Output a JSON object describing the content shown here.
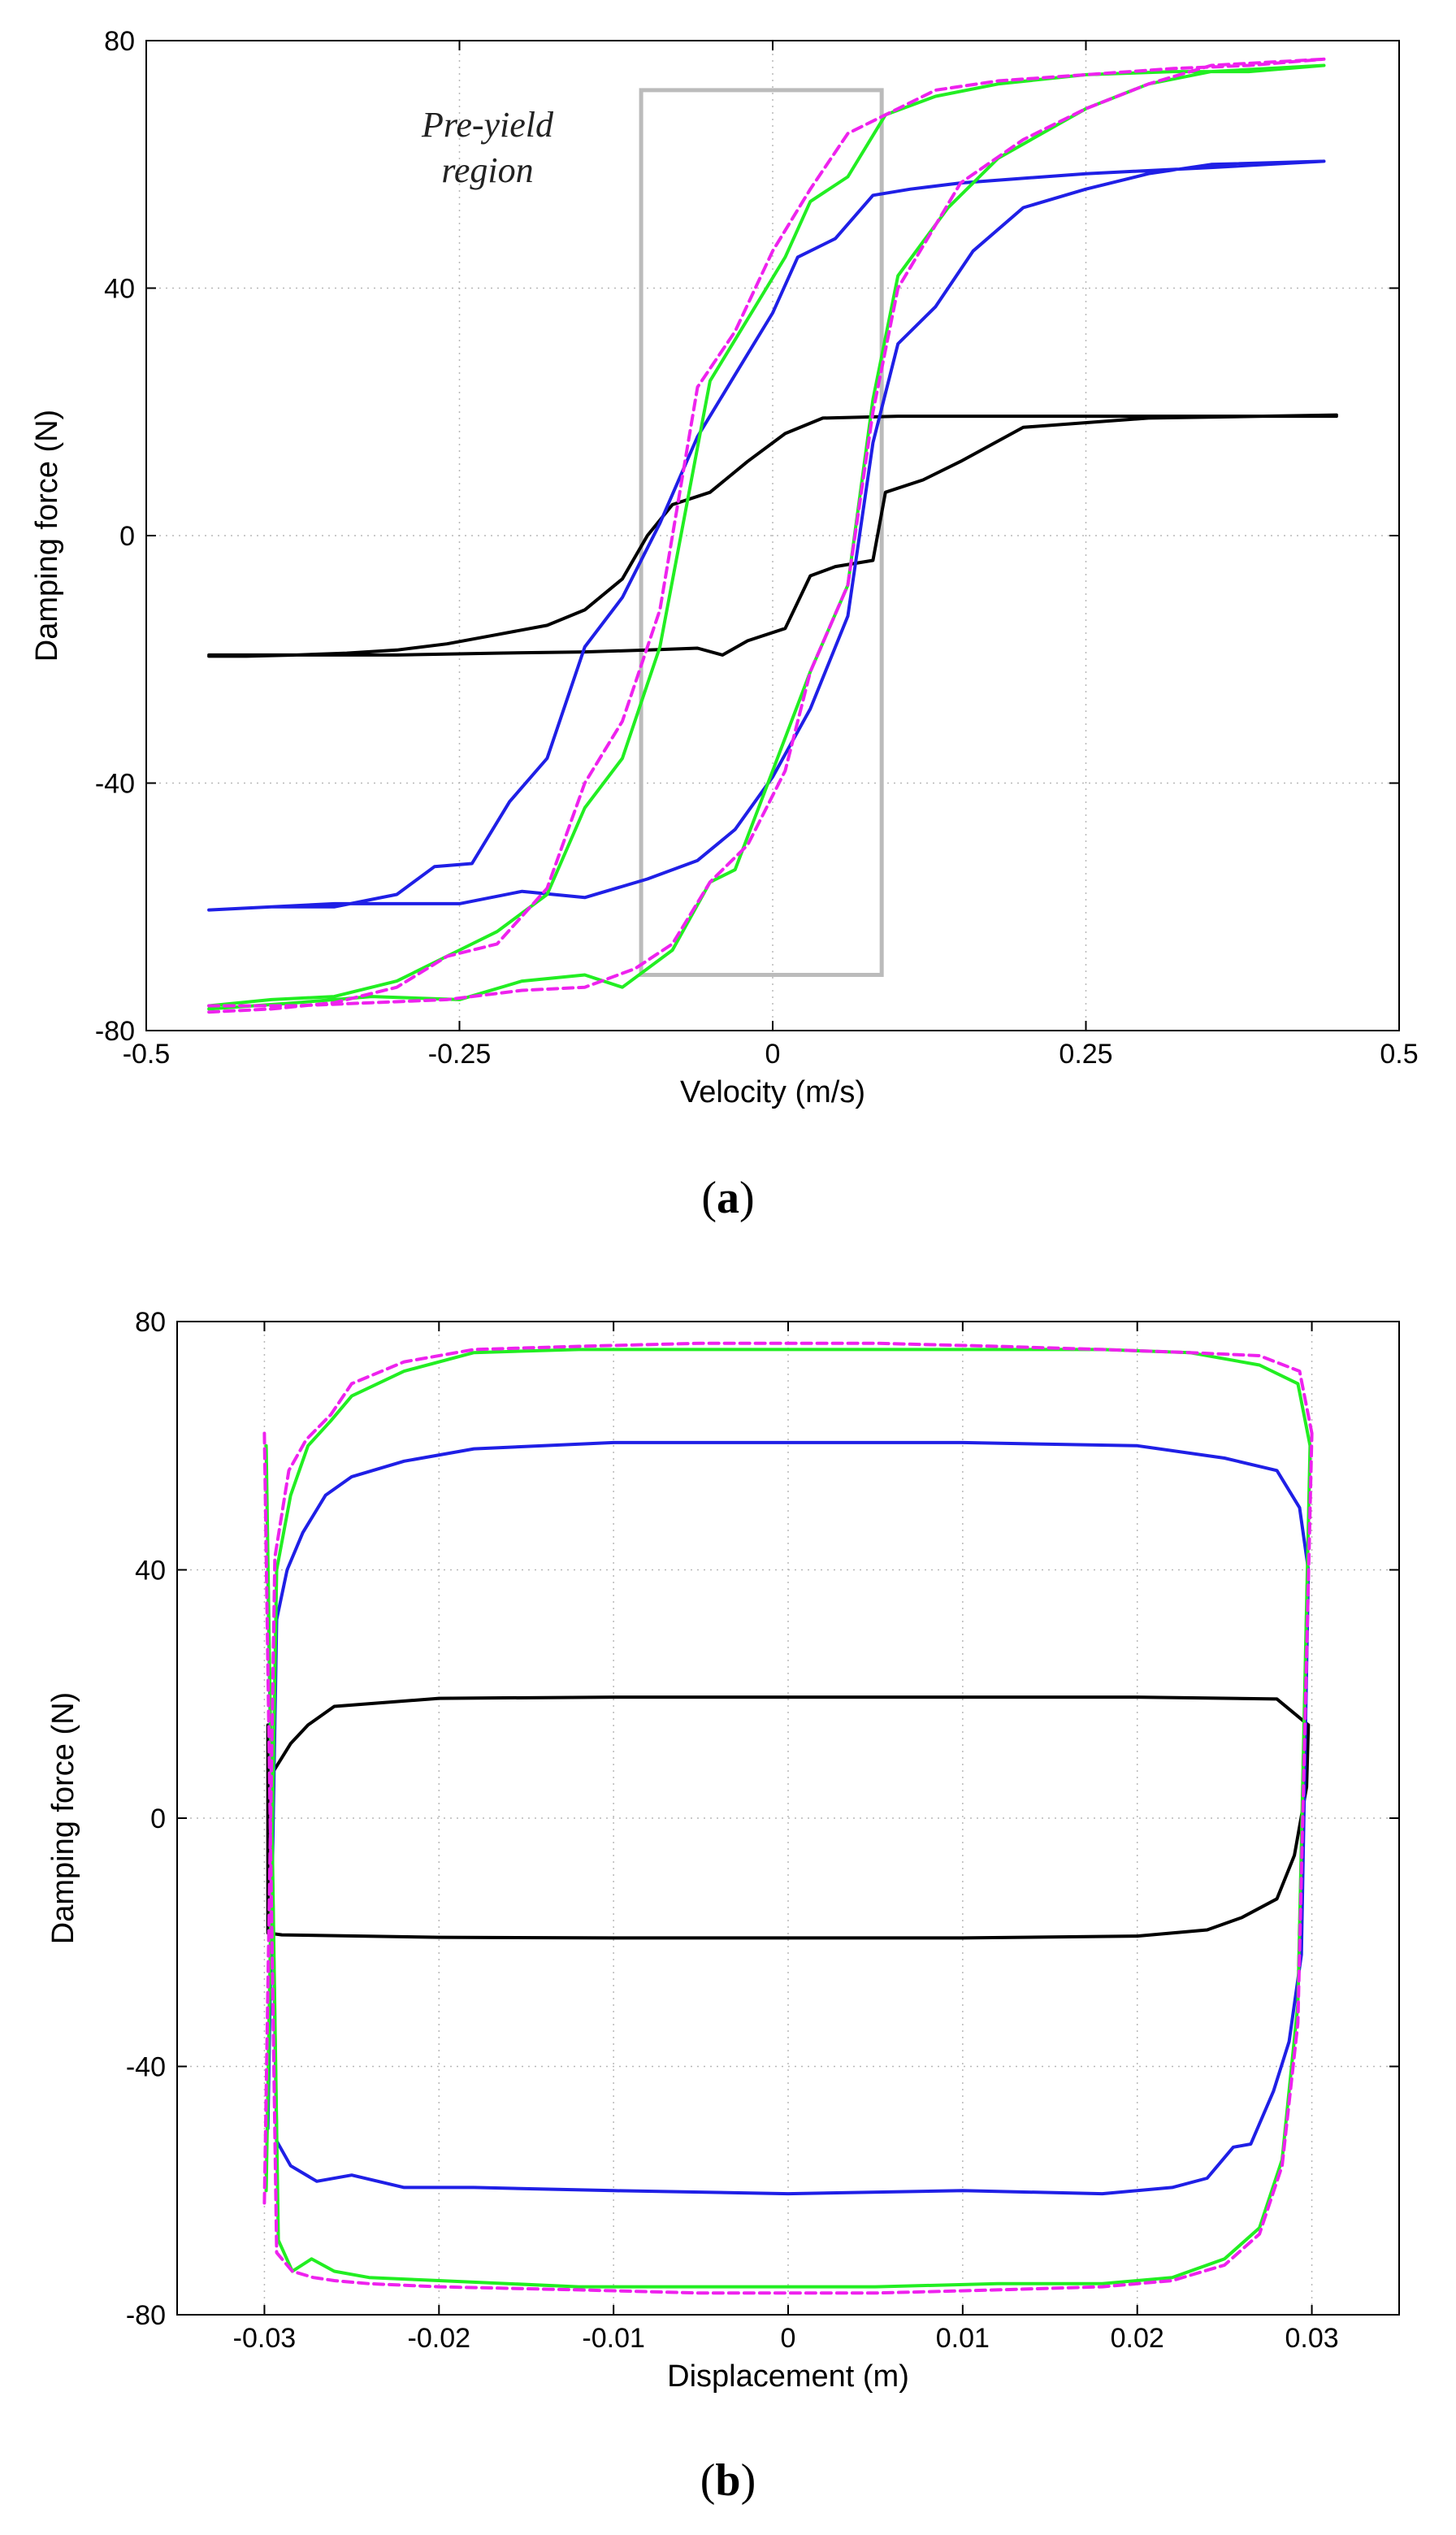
{
  "figure_labels": {
    "a": "a",
    "b": "b"
  },
  "chart_data": [
    {
      "id": "a",
      "type": "line",
      "xlabel": "Velocity (m/s)",
      "ylabel": "Damping force (N)",
      "xlim": [
        -0.5,
        0.5
      ],
      "ylim": [
        -80,
        80
      ],
      "xticks": [
        -0.5,
        -0.25,
        0,
        0.25,
        0.5
      ],
      "xtick_labels": [
        "-0.5",
        "-0.25",
        "0",
        "0.25",
        "0.5"
      ],
      "yticks": [
        -80,
        -40,
        0,
        40,
        80
      ],
      "ytick_labels": [
        "-80",
        "-40",
        "0",
        "40",
        "80"
      ],
      "grid": true,
      "annotation": {
        "lines": [
          "Pre-yield",
          "region"
        ],
        "box_x": [
          -0.105,
          0.087
        ],
        "box_y": [
          -71,
          72
        ],
        "color": "#bbbbbb"
      },
      "series": [
        {
          "name": "black",
          "color": "#000000",
          "dash": false,
          "upper_x": [
            -0.45,
            -0.42,
            -0.38,
            -0.34,
            -0.3,
            -0.26,
            -0.22,
            -0.18,
            -0.15,
            -0.12,
            -0.1,
            -0.08,
            -0.05,
            -0.02,
            0.01,
            0.04,
            0.1,
            0.2,
            0.3,
            0.45
          ],
          "upper_y": [
            -19.5,
            -19.5,
            -19.3,
            -19,
            -18.5,
            -17.5,
            -16,
            -14.5,
            -12,
            -7,
            0,
            5,
            7,
            12,
            16.5,
            19,
            19.3,
            19.3,
            19.3,
            19.3
          ],
          "lower_x": [
            -0.45,
            -0.38,
            -0.3,
            -0.22,
            -0.15,
            -0.1,
            -0.06,
            -0.04,
            -0.02,
            0.01,
            0.03,
            0.05,
            0.08,
            0.09,
            0.12,
            0.15,
            0.2,
            0.3,
            0.45
          ],
          "lower_y": [
            -19.3,
            -19.3,
            -19.3,
            -19,
            -18.8,
            -18.5,
            -18.2,
            -19.3,
            -17,
            -15,
            -6.5,
            -5,
            -4,
            7,
            9,
            12,
            17.5,
            19,
            19.5
          ]
        },
        {
          "name": "blue",
          "color": "#1f1fe6",
          "dash": false,
          "upper_x": [
            -0.45,
            -0.4,
            -0.35,
            -0.3,
            -0.27,
            -0.24,
            -0.21,
            -0.18,
            -0.15,
            -0.12,
            -0.09,
            -0.06,
            -0.03,
            0.0,
            0.02,
            0.05,
            0.08,
            0.11,
            0.15,
            0.25,
            0.35,
            0.44
          ],
          "upper_y": [
            -60.5,
            -60,
            -60,
            -58,
            -53.5,
            -53,
            -43,
            -36,
            -18,
            -10,
            2,
            16,
            26,
            36,
            45,
            48,
            55,
            56,
            57,
            58.5,
            59.5,
            60.5
          ],
          "lower_x": [
            -0.45,
            -0.35,
            -0.25,
            -0.2,
            -0.15,
            -0.1,
            -0.06,
            -0.03,
            0.0,
            0.03,
            0.06,
            0.08,
            0.1,
            0.13,
            0.16,
            0.2,
            0.25,
            0.3,
            0.35,
            0.44
          ],
          "lower_y": [
            -60.5,
            -59.5,
            -59.5,
            -57.5,
            -58.5,
            -55.5,
            -52.5,
            -47.5,
            -39,
            -28,
            -13,
            15,
            31,
            37,
            46,
            53,
            56,
            58.5,
            60,
            60.5
          ]
        },
        {
          "name": "green",
          "color": "#22ee22",
          "dash": false,
          "upper_x": [
            -0.45,
            -0.4,
            -0.35,
            -0.3,
            -0.25,
            -0.22,
            -0.18,
            -0.15,
            -0.12,
            -0.09,
            -0.05,
            -0.02,
            0.01,
            0.03,
            0.06,
            0.09,
            0.13,
            0.18,
            0.25,
            0.32,
            0.38,
            0.44
          ],
          "upper_y": [
            -76,
            -75,
            -74.5,
            -72,
            -67,
            -64,
            -58,
            -44,
            -36,
            -18,
            25,
            35,
            45,
            54,
            58,
            68,
            71,
            73,
            74.5,
            75,
            75,
            76
          ],
          "lower_x": [
            -0.45,
            -0.38,
            -0.32,
            -0.25,
            -0.2,
            -0.15,
            -0.12,
            -0.08,
            -0.05,
            -0.03,
            0.0,
            0.03,
            0.06,
            0.08,
            0.1,
            0.14,
            0.18,
            0.25,
            0.3,
            0.35,
            0.44
          ],
          "lower_y": [
            -76.5,
            -75.5,
            -74.5,
            -75,
            -72,
            -71,
            -73,
            -67,
            -56,
            -54,
            -38,
            -22,
            -8,
            22,
            42,
            53,
            61,
            69,
            73,
            75,
            76
          ]
        },
        {
          "name": "magenta",
          "color": "#ee22ee",
          "dash": true,
          "upper_x": [
            -0.45,
            -0.4,
            -0.35,
            -0.3,
            -0.26,
            -0.22,
            -0.18,
            -0.15,
            -0.12,
            -0.09,
            -0.06,
            -0.03,
            0.0,
            0.03,
            0.06,
            0.09,
            0.13,
            0.18,
            0.25,
            0.32,
            0.38,
            0.44
          ],
          "upper_y": [
            -77,
            -76.5,
            -75.5,
            -73,
            -68,
            -66,
            -57,
            -40,
            -30,
            -12,
            24,
            33,
            46,
            56,
            65,
            68,
            72,
            73.5,
            74.5,
            75.5,
            76,
            77
          ],
          "lower_x": [
            -0.45,
            -0.38,
            -0.32,
            -0.26,
            -0.2,
            -0.15,
            -0.11,
            -0.08,
            -0.05,
            -0.02,
            0.01,
            0.03,
            0.06,
            0.08,
            0.1,
            0.15,
            0.2,
            0.25,
            0.3,
            0.35,
            0.44
          ],
          "lower_y": [
            -76,
            -76,
            -75.5,
            -75,
            -73.5,
            -73,
            -70,
            -66,
            -56,
            -50,
            -38,
            -22,
            -8,
            20,
            40,
            57,
            64,
            69,
            73,
            76,
            77
          ]
        }
      ]
    },
    {
      "id": "b",
      "type": "line",
      "xlabel": "Displacement (m)",
      "ylabel": "Damping force (N)",
      "xlim": [
        -0.035,
        0.035
      ],
      "ylim": [
        -80,
        80
      ],
      "xticks": [
        -0.03,
        -0.02,
        -0.01,
        0,
        0.01,
        0.02,
        0.03
      ],
      "xtick_labels": [
        "-0.03",
        "-0.02",
        "-0.01",
        "0",
        "0.01",
        "0.02",
        "0.03"
      ],
      "yticks": [
        -80,
        -40,
        0,
        40,
        80
      ],
      "ytick_labels": [
        "-80",
        "-40",
        "0",
        "40",
        "80"
      ],
      "grid": true,
      "series": [
        {
          "name": "black",
          "color": "#000000",
          "dash": false,
          "upper_x": [
            -0.0297,
            -0.0296,
            -0.0285,
            -0.0275,
            -0.026,
            -0.02,
            -0.01,
            0.0,
            0.01,
            0.02,
            0.028,
            0.0298
          ],
          "upper_y": [
            -15,
            7,
            12,
            15,
            18,
            19.3,
            19.5,
            19.5,
            19.5,
            19.5,
            19.2,
            15
          ],
          "lower_x": [
            -0.0298,
            -0.0298,
            -0.029,
            -0.02,
            -0.01,
            0.0,
            0.01,
            0.02,
            0.024,
            0.026,
            0.028,
            0.029,
            0.0297,
            0.0298
          ],
          "lower_y": [
            15,
            -18.5,
            -18.8,
            -19.2,
            -19.3,
            -19.3,
            -19.3,
            -19,
            -18,
            -16,
            -13,
            -6,
            5,
            15
          ]
        },
        {
          "name": "blue",
          "color": "#1f1fe6",
          "dash": false,
          "upper_x": [
            -0.0298,
            -0.0293,
            -0.0287,
            -0.0278,
            -0.0265,
            -0.025,
            -0.022,
            -0.018,
            -0.01,
            0.0,
            0.01,
            0.02,
            0.025,
            0.028,
            0.0293,
            0.0298
          ],
          "upper_y": [
            -50,
            32,
            40,
            46,
            52,
            55,
            57.5,
            59.5,
            60.5,
            60.5,
            60.5,
            60,
            58,
            56,
            50,
            40
          ],
          "lower_x": [
            -0.0298,
            -0.0293,
            -0.0285,
            -0.027,
            -0.025,
            -0.022,
            -0.018,
            -0.01,
            0.0,
            0.01,
            0.018,
            0.022,
            0.024,
            0.0255,
            0.0265,
            0.0278,
            0.0287,
            0.0294,
            0.0298
          ],
          "lower_y": [
            40,
            -52,
            -56,
            -58.5,
            -57.5,
            -59.5,
            -59.5,
            -60,
            -60.5,
            -60,
            -60.5,
            -59.5,
            -58,
            -53,
            -52.5,
            -44,
            -36,
            -22,
            40
          ]
        },
        {
          "name": "green",
          "color": "#22ee22",
          "dash": false,
          "upper_x": [
            -0.0299,
            -0.0293,
            -0.0285,
            -0.0275,
            -0.0262,
            -0.025,
            -0.022,
            -0.018,
            -0.012,
            -0.005,
            0.005,
            0.012,
            0.018,
            0.023,
            0.027,
            0.0292,
            0.0299
          ],
          "upper_y": [
            -60,
            40,
            52,
            60,
            64,
            68,
            72,
            75,
            75.5,
            75.5,
            75.5,
            75.5,
            75.5,
            75,
            73,
            70,
            60
          ],
          "lower_x": [
            -0.0299,
            -0.0292,
            -0.0284,
            -0.0273,
            -0.026,
            -0.024,
            -0.02,
            -0.012,
            -0.005,
            0.005,
            0.012,
            0.018,
            0.022,
            0.025,
            0.027,
            0.0283,
            0.0292,
            0.0299
          ],
          "lower_y": [
            60,
            -68,
            -73,
            -71,
            -73,
            -74,
            -74.5,
            -75.5,
            -75.5,
            -75.5,
            -75,
            -75,
            -74,
            -71,
            -66,
            -55,
            -30,
            60
          ]
        },
        {
          "name": "magenta",
          "color": "#ee22ee",
          "dash": true,
          "upper_x": [
            -0.03,
            -0.0294,
            -0.0286,
            -0.0276,
            -0.0262,
            -0.025,
            -0.022,
            -0.018,
            -0.012,
            -0.005,
            0.005,
            0.012,
            0.018,
            0.023,
            0.027,
            0.0293,
            0.03
          ],
          "upper_y": [
            -62,
            42,
            56,
            61,
            65,
            70,
            73.5,
            75.5,
            76,
            76.5,
            76.5,
            76,
            75.5,
            75,
            74.5,
            72,
            62
          ],
          "lower_x": [
            -0.03,
            -0.0293,
            -0.0284,
            -0.0272,
            -0.026,
            -0.024,
            -0.02,
            -0.012,
            -0.005,
            0.005,
            0.012,
            0.018,
            0.022,
            0.025,
            0.027,
            0.0283,
            0.0292,
            0.03
          ],
          "lower_y": [
            62,
            -70,
            -73,
            -74,
            -74.5,
            -75,
            -75.5,
            -76,
            -76.5,
            -76.5,
            -76,
            -75.5,
            -74.5,
            -72,
            -67,
            -56,
            -33,
            62
          ]
        }
      ]
    }
  ]
}
